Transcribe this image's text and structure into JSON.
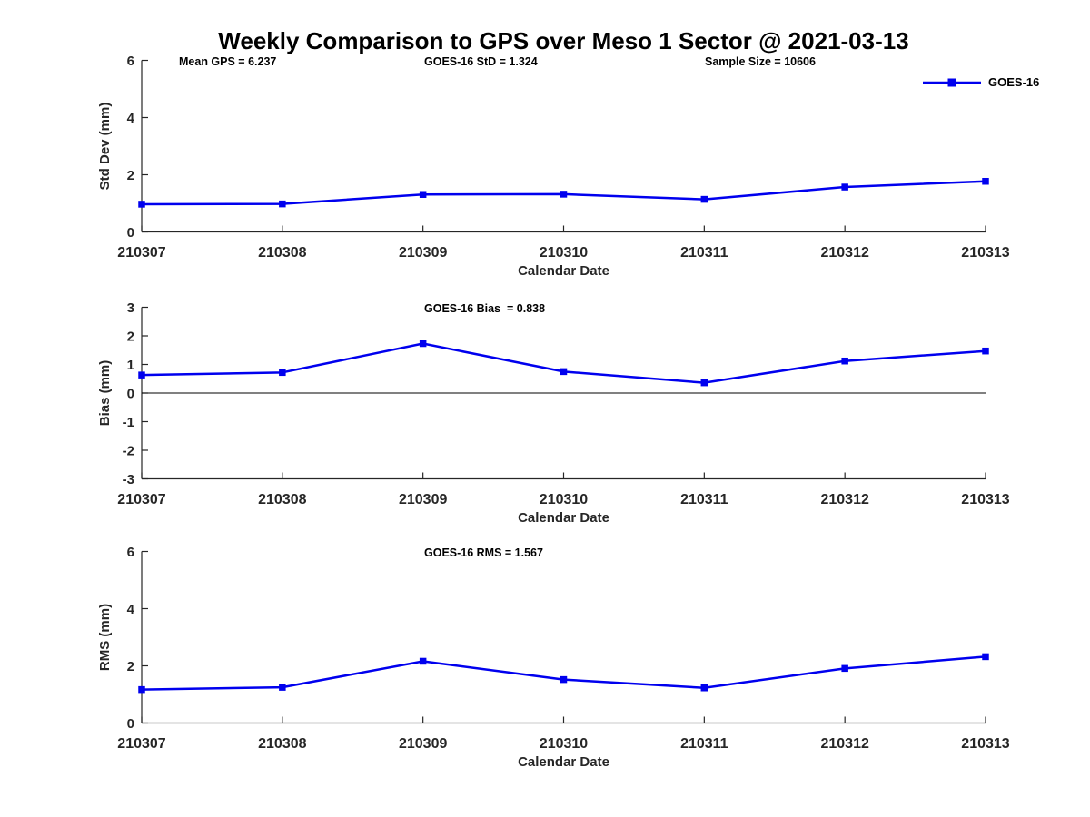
{
  "figure": {
    "title": "Weekly Comparison to GPS over Meso 1 Sector @ 2021-03-13"
  },
  "stats": {
    "mean_gps": "Mean GPS = 6.237",
    "goes16_std": "GOES-16 StD = 1.324",
    "sample_size": "Sample Size = 10606"
  },
  "legend": {
    "label": "GOES-16",
    "marker": "blue-line-with-square"
  },
  "colors": {
    "series": "#0000EE",
    "axis": "#262626",
    "text": "#000000"
  },
  "chart_data": [
    {
      "type": "line",
      "title": "",
      "categories": [
        "210307",
        "210308",
        "210309",
        "210310",
        "210311",
        "210312",
        "210313"
      ],
      "series": [
        {
          "name": "GOES-16",
          "values": [
            0.97,
            0.98,
            1.31,
            1.32,
            1.14,
            1.57,
            1.77
          ]
        }
      ],
      "xlabel": "Calendar Date",
      "ylabel": "Std Dev (mm)",
      "ylim": [
        0,
        6
      ],
      "yticks": [
        0,
        2,
        4,
        6
      ],
      "grid": false,
      "marker": "square",
      "legend_position": "top-right",
      "annotations": [
        "Mean GPS = 6.237",
        "GOES-16 StD = 1.324",
        "Sample Size = 10606"
      ]
    },
    {
      "type": "line",
      "title": "GOES-16 Bias  = 0.838",
      "categories": [
        "210307",
        "210308",
        "210309",
        "210310",
        "210311",
        "210312",
        "210313"
      ],
      "series": [
        {
          "name": "GOES-16",
          "values": [
            0.63,
            0.72,
            1.73,
            0.75,
            0.36,
            1.12,
            1.47
          ]
        }
      ],
      "xlabel": "Calendar Date",
      "ylabel": "Bias (mm)",
      "ylim": [
        -3,
        3
      ],
      "yticks": [
        -3,
        -2,
        -1,
        0,
        1,
        2,
        3
      ],
      "zero_line": true,
      "grid": false,
      "marker": "square"
    },
    {
      "type": "line",
      "title": "GOES-16 RMS = 1.567",
      "categories": [
        "210307",
        "210308",
        "210309",
        "210310",
        "210311",
        "210312",
        "210313"
      ],
      "series": [
        {
          "name": "GOES-16",
          "values": [
            1.17,
            1.25,
            2.16,
            1.52,
            1.23,
            1.91,
            2.32
          ]
        }
      ],
      "xlabel": "Calendar Date",
      "ylabel": "RMS (mm)",
      "ylim": [
        0,
        6
      ],
      "yticks": [
        0,
        2,
        4,
        6
      ],
      "grid": false,
      "marker": "square"
    }
  ]
}
